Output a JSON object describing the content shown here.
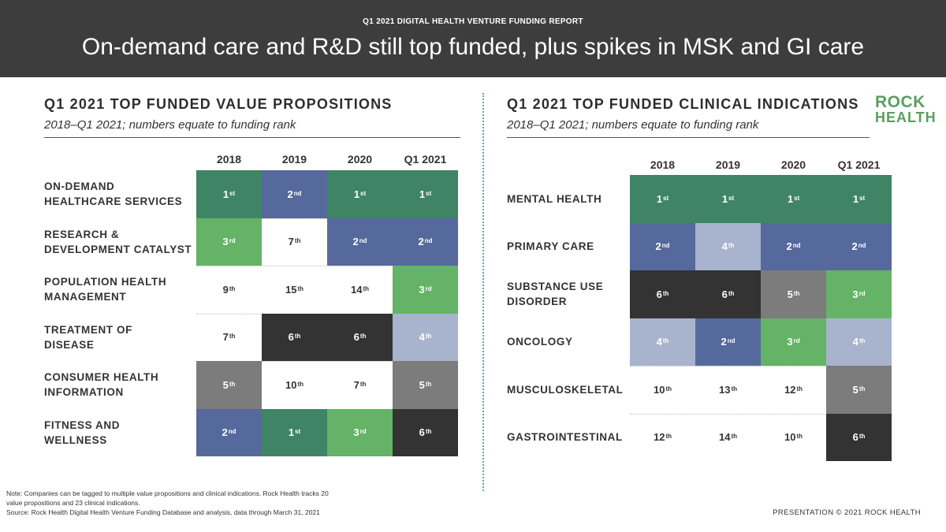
{
  "header": {
    "eyebrow": "Q1 2021 DIGITAL HEALTH VENTURE FUNDING REPORT",
    "headline": "On-demand care and R&D still top funded, plus spikes in MSK and GI care"
  },
  "colors": {
    "header_bg": "#3d3d3d",
    "rank_1": "#3f8465",
    "rank_2": "#56699c",
    "rank_3": "#64b366",
    "rank_4": "#a8b4cd",
    "rank_5": "#7c7c7c",
    "rank_6": "#333333",
    "logo_green": "#5a9e62",
    "divider": "#5aa9a3"
  },
  "left_panel": {
    "title": "Q1 2021 TOP FUNDED VALUE PROPOSITIONS",
    "subtitle": "2018–Q1 2021; numbers equate to funding rank",
    "columns": [
      "2018",
      "2019",
      "2020",
      "Q1 2021"
    ],
    "rows": [
      {
        "label_lines": [
          "ON-DEMAND",
          "HEALTHCARE SERVICES"
        ],
        "ranks": [
          1,
          2,
          1,
          1
        ]
      },
      {
        "label_lines": [
          "RESEARCH &",
          "DEVELOPMENT CATALYST"
        ],
        "ranks": [
          3,
          7,
          2,
          2
        ]
      },
      {
        "label_lines": [
          "POPULATION HEALTH",
          "MANAGEMENT"
        ],
        "ranks": [
          9,
          15,
          14,
          3
        ]
      },
      {
        "label_lines": [
          "TREATMENT OF",
          "DISEASE"
        ],
        "ranks": [
          7,
          6,
          6,
          4
        ]
      },
      {
        "label_lines": [
          "CONSUMER HEALTH",
          "INFORMATION"
        ],
        "ranks": [
          5,
          10,
          7,
          5
        ]
      },
      {
        "label_lines": [
          "FITNESS AND",
          "WELLNESS"
        ],
        "ranks": [
          2,
          1,
          3,
          6
        ]
      }
    ]
  },
  "right_panel": {
    "title": "Q1 2021 TOP FUNDED CLINICAL INDICATIONS",
    "subtitle": "2018–Q1 2021; numbers equate to funding rank",
    "columns": [
      "2018",
      "2019",
      "2020",
      "Q1 2021"
    ],
    "rows": [
      {
        "label_lines": [
          "MENTAL HEALTH"
        ],
        "ranks": [
          1,
          1,
          1,
          1
        ]
      },
      {
        "label_lines": [
          "PRIMARY CARE"
        ],
        "ranks": [
          2,
          4,
          2,
          2
        ]
      },
      {
        "label_lines": [
          "SUBSTANCE USE",
          "DISORDER"
        ],
        "ranks": [
          6,
          6,
          5,
          3
        ]
      },
      {
        "label_lines": [
          "ONCOLOGY"
        ],
        "ranks": [
          4,
          2,
          3,
          4
        ]
      },
      {
        "label_lines": [
          "MUSCULOSKELETAL"
        ],
        "ranks": [
          10,
          13,
          12,
          5
        ]
      },
      {
        "label_lines": [
          "GASTROINTESTINAL"
        ],
        "ranks": [
          12,
          14,
          10,
          6
        ]
      }
    ]
  },
  "logo": {
    "line1": "ROCK",
    "line2": "HEALTH"
  },
  "note": {
    "line1": "Note: Companies can be tagged to multiple value propositions and clinical indications. Rock Health tracks 20 value propositions and 23 clinical indications.",
    "line2": "Source: Rock Health Digital Health Venture Funding Database and analysis, data through March 31, 2021"
  },
  "footer": "PRESENTATION © 2021 ROCK HEALTH"
}
